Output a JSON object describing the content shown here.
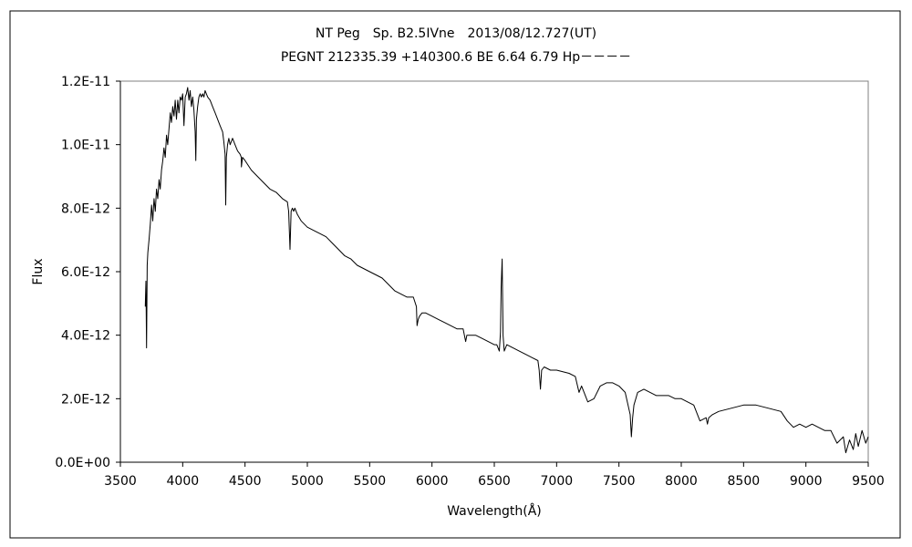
{
  "chart_data": {
    "type": "line",
    "title": "NT Peg　Sp. B2.5IVne　2013/08/12.727(UT)",
    "subtitle": "PEGNT 212335.39 +140300.6 BE 6.64 6.79 Hp－－－－",
    "xlabel": "Wavelength(Å)",
    "ylabel": "Flux",
    "xlim": [
      3500,
      9500
    ],
    "ylim": [
      0,
      1.2e-11
    ],
    "x_ticks": [
      "3500",
      "4000",
      "4500",
      "5000",
      "5500",
      "6000",
      "6500",
      "7000",
      "7500",
      "8000",
      "8500",
      "9000",
      "9500"
    ],
    "y_ticks": [
      "0.0E+00",
      "2.0E-12",
      "4.0E-12",
      "6.0E-12",
      "8.0E-12",
      "1.0E-11",
      "1.2E-11"
    ],
    "grid": false,
    "legend": "none",
    "series": [
      {
        "color": "#000000",
        "x": [
          3700,
          3705,
          3710,
          3715,
          3720,
          3730,
          3740,
          3750,
          3760,
          3770,
          3780,
          3790,
          3800,
          3810,
          3820,
          3830,
          3840,
          3850,
          3860,
          3870,
          3880,
          3890,
          3900,
          3910,
          3920,
          3930,
          3940,
          3950,
          3960,
          3970,
          3980,
          3990,
          4000,
          4010,
          4020,
          4030,
          4040,
          4050,
          4060,
          4070,
          4080,
          4090,
          4100,
          4105,
          4110,
          4120,
          4130,
          4140,
          4150,
          4160,
          4170,
          4180,
          4190,
          4200,
          4220,
          4240,
          4260,
          4280,
          4300,
          4320,
          4330,
          4340,
          4345,
          4350,
          4360,
          4370,
          4380,
          4400,
          4420,
          4440,
          4460,
          4470,
          4471,
          4480,
          4500,
          4550,
          4600,
          4650,
          4700,
          4750,
          4800,
          4840,
          4850,
          4861,
          4870,
          4880,
          4890,
          4900,
          4920,
          4950,
          5000,
          5050,
          5100,
          5150,
          5200,
          5250,
          5300,
          5350,
          5400,
          5450,
          5500,
          5550,
          5600,
          5650,
          5700,
          5750,
          5800,
          5850,
          5875,
          5880,
          5890,
          5900,
          5920,
          5950,
          6000,
          6050,
          6100,
          6150,
          6200,
          6250,
          6270,
          6280,
          6300,
          6350,
          6400,
          6450,
          6500,
          6520,
          6540,
          6550,
          6555,
          6563,
          6570,
          6580,
          6600,
          6650,
          6700,
          6750,
          6800,
          6850,
          6860,
          6870,
          6880,
          6900,
          6950,
          7000,
          7100,
          7150,
          7180,
          7200,
          7250,
          7300,
          7350,
          7400,
          7450,
          7500,
          7550,
          7590,
          7600,
          7610,
          7620,
          7650,
          7700,
          7750,
          7800,
          7850,
          7900,
          7950,
          8000,
          8050,
          8100,
          8130,
          8150,
          8200,
          8210,
          8220,
          8250,
          8300,
          8400,
          8500,
          8600,
          8700,
          8800,
          8850,
          8900,
          8950,
          9000,
          9050,
          9100,
          9150,
          9200,
          9250,
          9300,
          9320,
          9350,
          9380,
          9400,
          9420,
          9450,
          9480,
          9500
        ],
        "y": [
          4.9e-12,
          5.7e-12,
          3.6e-12,
          6.2e-12,
          6.6e-12,
          7e-12,
          7.5e-12,
          8.1e-12,
          7.6e-12,
          8.3e-12,
          7.9e-12,
          8.6e-12,
          8.3e-12,
          8.9e-12,
          8.6e-12,
          9.2e-12,
          9.5e-12,
          9.9e-12,
          9.6e-12,
          1.03e-11,
          1e-11,
          1.05e-11,
          1.1e-11,
          1.07e-11,
          1.12e-11,
          1.09e-11,
          1.14e-11,
          1.08e-11,
          1.14e-11,
          1.1e-11,
          1.15e-11,
          1.14e-11,
          1.16e-11,
          1.06e-11,
          1.15e-11,
          1.16e-11,
          1.18e-11,
          1.14e-11,
          1.17e-11,
          1.12e-11,
          1.15e-11,
          1.11e-11,
          1.04e-11,
          9.5e-12,
          1.08e-11,
          1.12e-11,
          1.15e-11,
          1.16e-11,
          1.15e-11,
          1.16e-11,
          1.15e-11,
          1.17e-11,
          1.16e-11,
          1.15e-11,
          1.14e-11,
          1.12e-11,
          1.1e-11,
          1.08e-11,
          1.06e-11,
          1.04e-11,
          1.01e-11,
          9.7e-12,
          8.1e-12,
          9.6e-12,
          1e-11,
          1.02e-11,
          1e-11,
          1.02e-11,
          1e-11,
          9.8e-12,
          9.7e-12,
          9.6e-12,
          9.3e-12,
          9.6e-12,
          9.5e-12,
          9.2e-12,
          9e-12,
          8.8e-12,
          8.6e-12,
          8.5e-12,
          8.3e-12,
          8.2e-12,
          7.9e-12,
          6.7e-12,
          7.9e-12,
          8e-12,
          7.9e-12,
          8e-12,
          7.8e-12,
          7.6e-12,
          7.4e-12,
          7.3e-12,
          7.2e-12,
          7.1e-12,
          6.9e-12,
          6.7e-12,
          6.5e-12,
          6.4e-12,
          6.2e-12,
          6.1e-12,
          6e-12,
          5.9e-12,
          5.8e-12,
          5.6e-12,
          5.4e-12,
          5.3e-12,
          5.2e-12,
          5.2e-12,
          4.9e-12,
          4.3e-12,
          4.5e-12,
          4.6e-12,
          4.7e-12,
          4.7e-12,
          4.6e-12,
          4.5e-12,
          4.4e-12,
          4.3e-12,
          4.2e-12,
          4.2e-12,
          3.8e-12,
          4e-12,
          4e-12,
          4e-12,
          3.9e-12,
          3.8e-12,
          3.7e-12,
          3.7e-12,
          3.5e-12,
          4.1e-12,
          5.5e-12,
          6.4e-12,
          4e-12,
          3.5e-12,
          3.7e-12,
          3.6e-12,
          3.5e-12,
          3.4e-12,
          3.3e-12,
          3.2e-12,
          2.9e-12,
          2.3e-12,
          2.9e-12,
          3e-12,
          2.9e-12,
          2.9e-12,
          2.8e-12,
          2.7e-12,
          2.2e-12,
          2.4e-12,
          1.9e-12,
          2e-12,
          2.4e-12,
          2.5e-12,
          2.5e-12,
          2.4e-12,
          2.2e-12,
          1.5e-12,
          8e-13,
          1.4e-12,
          1.8e-12,
          2.2e-12,
          2.3e-12,
          2.2e-12,
          2.1e-12,
          2.1e-12,
          2.1e-12,
          2e-12,
          2e-12,
          1.9e-12,
          1.8e-12,
          1.5e-12,
          1.3e-12,
          1.4e-12,
          1.2e-12,
          1.4e-12,
          1.5e-12,
          1.6e-12,
          1.7e-12,
          1.8e-12,
          1.8e-12,
          1.7e-12,
          1.6e-12,
          1.3e-12,
          1.1e-12,
          1.2e-12,
          1.1e-12,
          1.2e-12,
          1.1e-12,
          1e-12,
          1e-12,
          6e-13,
          8e-13,
          3e-13,
          7e-13,
          4e-13,
          9e-13,
          5e-13,
          1e-12,
          6e-13,
          8e-13
        ]
      }
    ]
  }
}
